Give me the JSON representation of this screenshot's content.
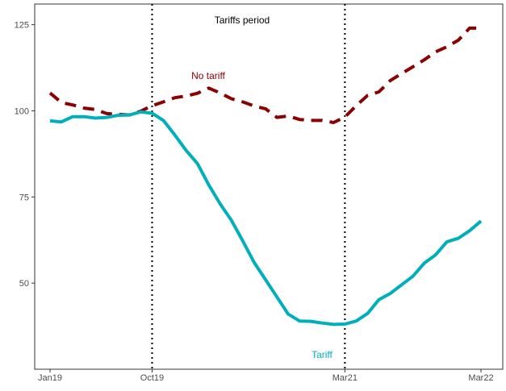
{
  "chart_data": {
    "type": "line",
    "title": "",
    "xlabel": "",
    "ylabel": "",
    "x_tick_labels": [
      "Jan19",
      "Oct19",
      "Mar21",
      "Mar22"
    ],
    "y_ticks": [
      50,
      75,
      100,
      125
    ],
    "ylim": [
      25,
      131
    ],
    "grid": false,
    "x": [
      "Jan19",
      "Feb19",
      "Mar19",
      "Apr19",
      "May19",
      "Jun19",
      "Jul19",
      "Aug19",
      "Sep19",
      "Oct19",
      "Nov19",
      "Dec19",
      "Jan20",
      "Feb20",
      "Mar20",
      "Apr20",
      "May20",
      "Jun20",
      "Jul20",
      "Aug20",
      "Sep20",
      "Oct20",
      "Nov20",
      "Dec20",
      "Jan21",
      "Feb21",
      "Mar21",
      "Apr21",
      "May21",
      "Jun21",
      "Jul21",
      "Aug21",
      "Sep21",
      "Oct21",
      "Nov21",
      "Dec21",
      "Jan22",
      "Feb22",
      "Mar22"
    ],
    "series": [
      {
        "name": "No tariff",
        "color": "#8b0000",
        "style": "dashed",
        "values": [
          105.2,
          102.4,
          101.7,
          100.8,
          100.4,
          99.2,
          99.0,
          98.8,
          99.9,
          101.5,
          102.6,
          103.8,
          104.3,
          105.1,
          106.6,
          105.2,
          103.5,
          102.6,
          101.4,
          100.6,
          98.1,
          98.5,
          97.5,
          97.2,
          97.2,
          96.6,
          98.2,
          101.5,
          104.5,
          105.5,
          108.8,
          110.8,
          112.8,
          114.8,
          117.1,
          118.6,
          120.5,
          124.0,
          124.0
        ]
      },
      {
        "name": "Tariff",
        "color": "#00afbb",
        "style": "solid",
        "values": [
          97.1,
          96.8,
          98.3,
          98.3,
          97.9,
          98.1,
          98.7,
          98.8,
          99.7,
          99.3,
          97.2,
          93.0,
          88.5,
          84.7,
          78.5,
          73.0,
          68.2,
          62.2,
          56.0,
          51.0,
          46.0,
          41.0,
          39.0,
          38.9,
          38.4,
          38.0,
          38.1,
          39.0,
          41.2,
          45.2,
          47.0,
          49.5,
          52.0,
          55.8,
          58.2,
          62.0,
          63.0,
          65.2,
          68.0
        ]
      }
    ],
    "vlines": [
      "Oct19",
      "Mar21"
    ],
    "annotations": [
      {
        "text": "Tariffs period",
        "color": "#000000"
      },
      {
        "text": "No tariff",
        "color": "#8b0000"
      },
      {
        "text": "Tariff",
        "color": "#00afbb"
      }
    ]
  }
}
